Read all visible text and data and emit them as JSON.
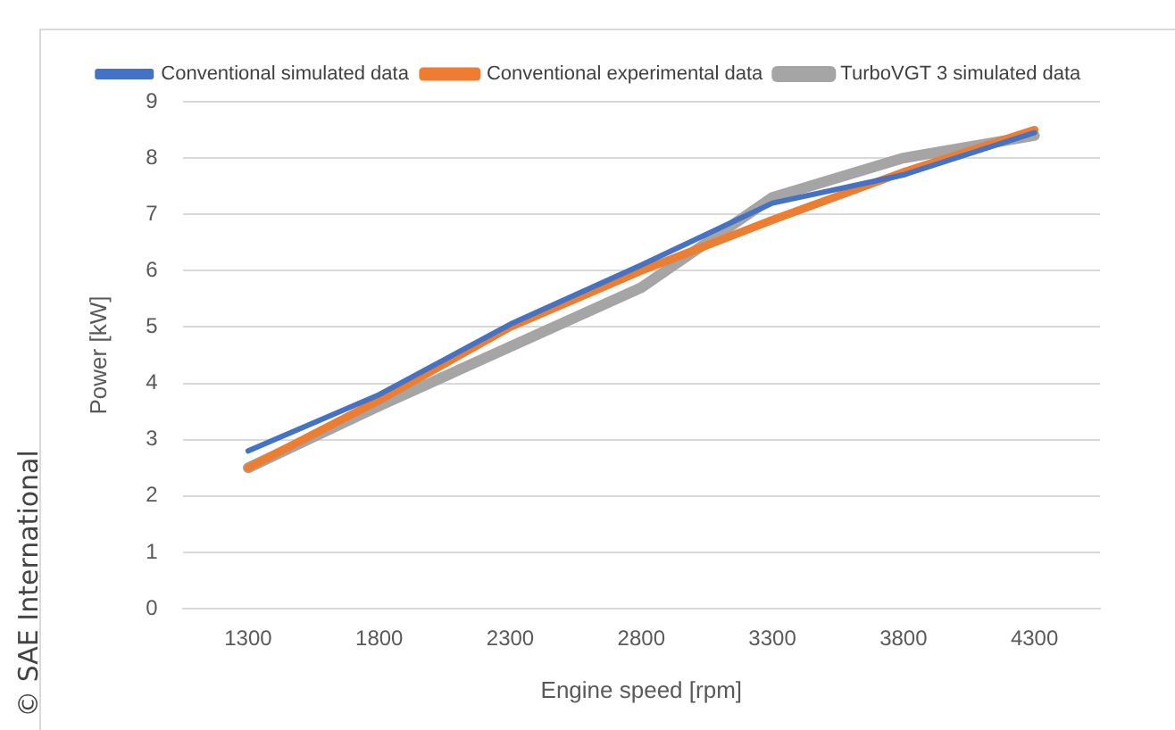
{
  "chart_data": {
    "type": "line",
    "xlabel": "Engine speed [rpm]",
    "ylabel": "Power [kW]",
    "categories": [
      "1300",
      "1800",
      "2300",
      "2800",
      "3300",
      "3800",
      "4300"
    ],
    "series": [
      {
        "name": "Conventional simulated data",
        "color": "#4472c4",
        "values": [
          2.8,
          3.8,
          5.05,
          6.1,
          7.2,
          7.7,
          8.45
        ]
      },
      {
        "name": "Conventional experimental data",
        "color": "#ed7d31",
        "values": [
          2.5,
          3.7,
          5.0,
          6.0,
          6.9,
          7.75,
          8.5
        ]
      },
      {
        "name": "TurboVGT 3 simulated data",
        "color": "#a5a5a5",
        "values": [
          2.5,
          3.6,
          4.65,
          5.7,
          7.3,
          8.0,
          8.4
        ]
      }
    ],
    "ylim": [
      0,
      9
    ],
    "yticks": [
      0,
      1,
      2,
      3,
      4,
      5,
      6,
      7,
      8,
      9
    ],
    "grid": "y",
    "legend": "top",
    "marker": "none",
    "line_style": "solid",
    "annotations": [
      "© SAE International"
    ]
  }
}
